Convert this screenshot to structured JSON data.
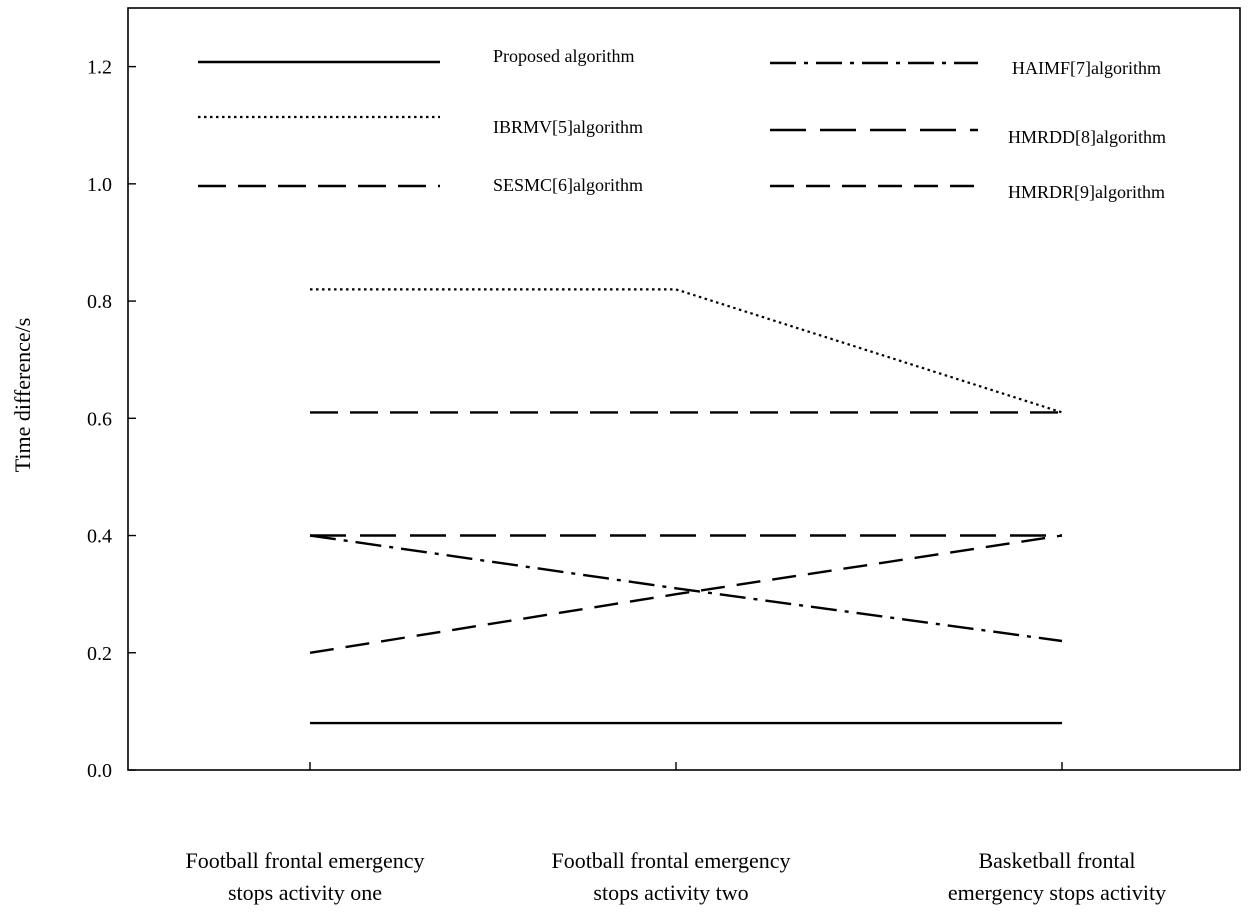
{
  "chart_data": {
    "type": "line",
    "title": "",
    "xlabel": "",
    "ylabel": "Time difference/s",
    "ylim": [
      0,
      1.3
    ],
    "yticks": [
      "0.0",
      "0.2",
      "0.4",
      "0.6",
      "0.8",
      "1.0",
      "1.2"
    ],
    "grid": false,
    "legend_position": "top",
    "categories": [
      [
        "Football frontal emergency",
        "stops activity one"
      ],
      [
        "Football frontal emergency",
        "stops activity two"
      ],
      [
        "Basketball frontal",
        "emergency stops activity"
      ]
    ],
    "series": [
      {
        "name": "Proposed algorithm",
        "style": "solid",
        "values": [
          0.08,
          0.08,
          0.08
        ]
      },
      {
        "name": "IBRMV[5]algorithm",
        "style": "dotted",
        "values": [
          0.82,
          0.82,
          0.61
        ]
      },
      {
        "name": "SESMC[6]algorithm",
        "style": "long-dash",
        "values": [
          0.61,
          0.61,
          0.61
        ]
      },
      {
        "name": "HAIMF[7]algorithm",
        "style": "dash-dot",
        "values": [
          0.4,
          0.31,
          0.22
        ]
      },
      {
        "name": "HMRDD[8]algorithm",
        "style": "long-dash-2",
        "values": [
          0.4,
          0.4,
          0.4
        ]
      },
      {
        "name": "HMRDR[9]algorithm",
        "style": "medium-dash",
        "values": [
          0.2,
          0.3,
          0.4
        ]
      }
    ]
  }
}
